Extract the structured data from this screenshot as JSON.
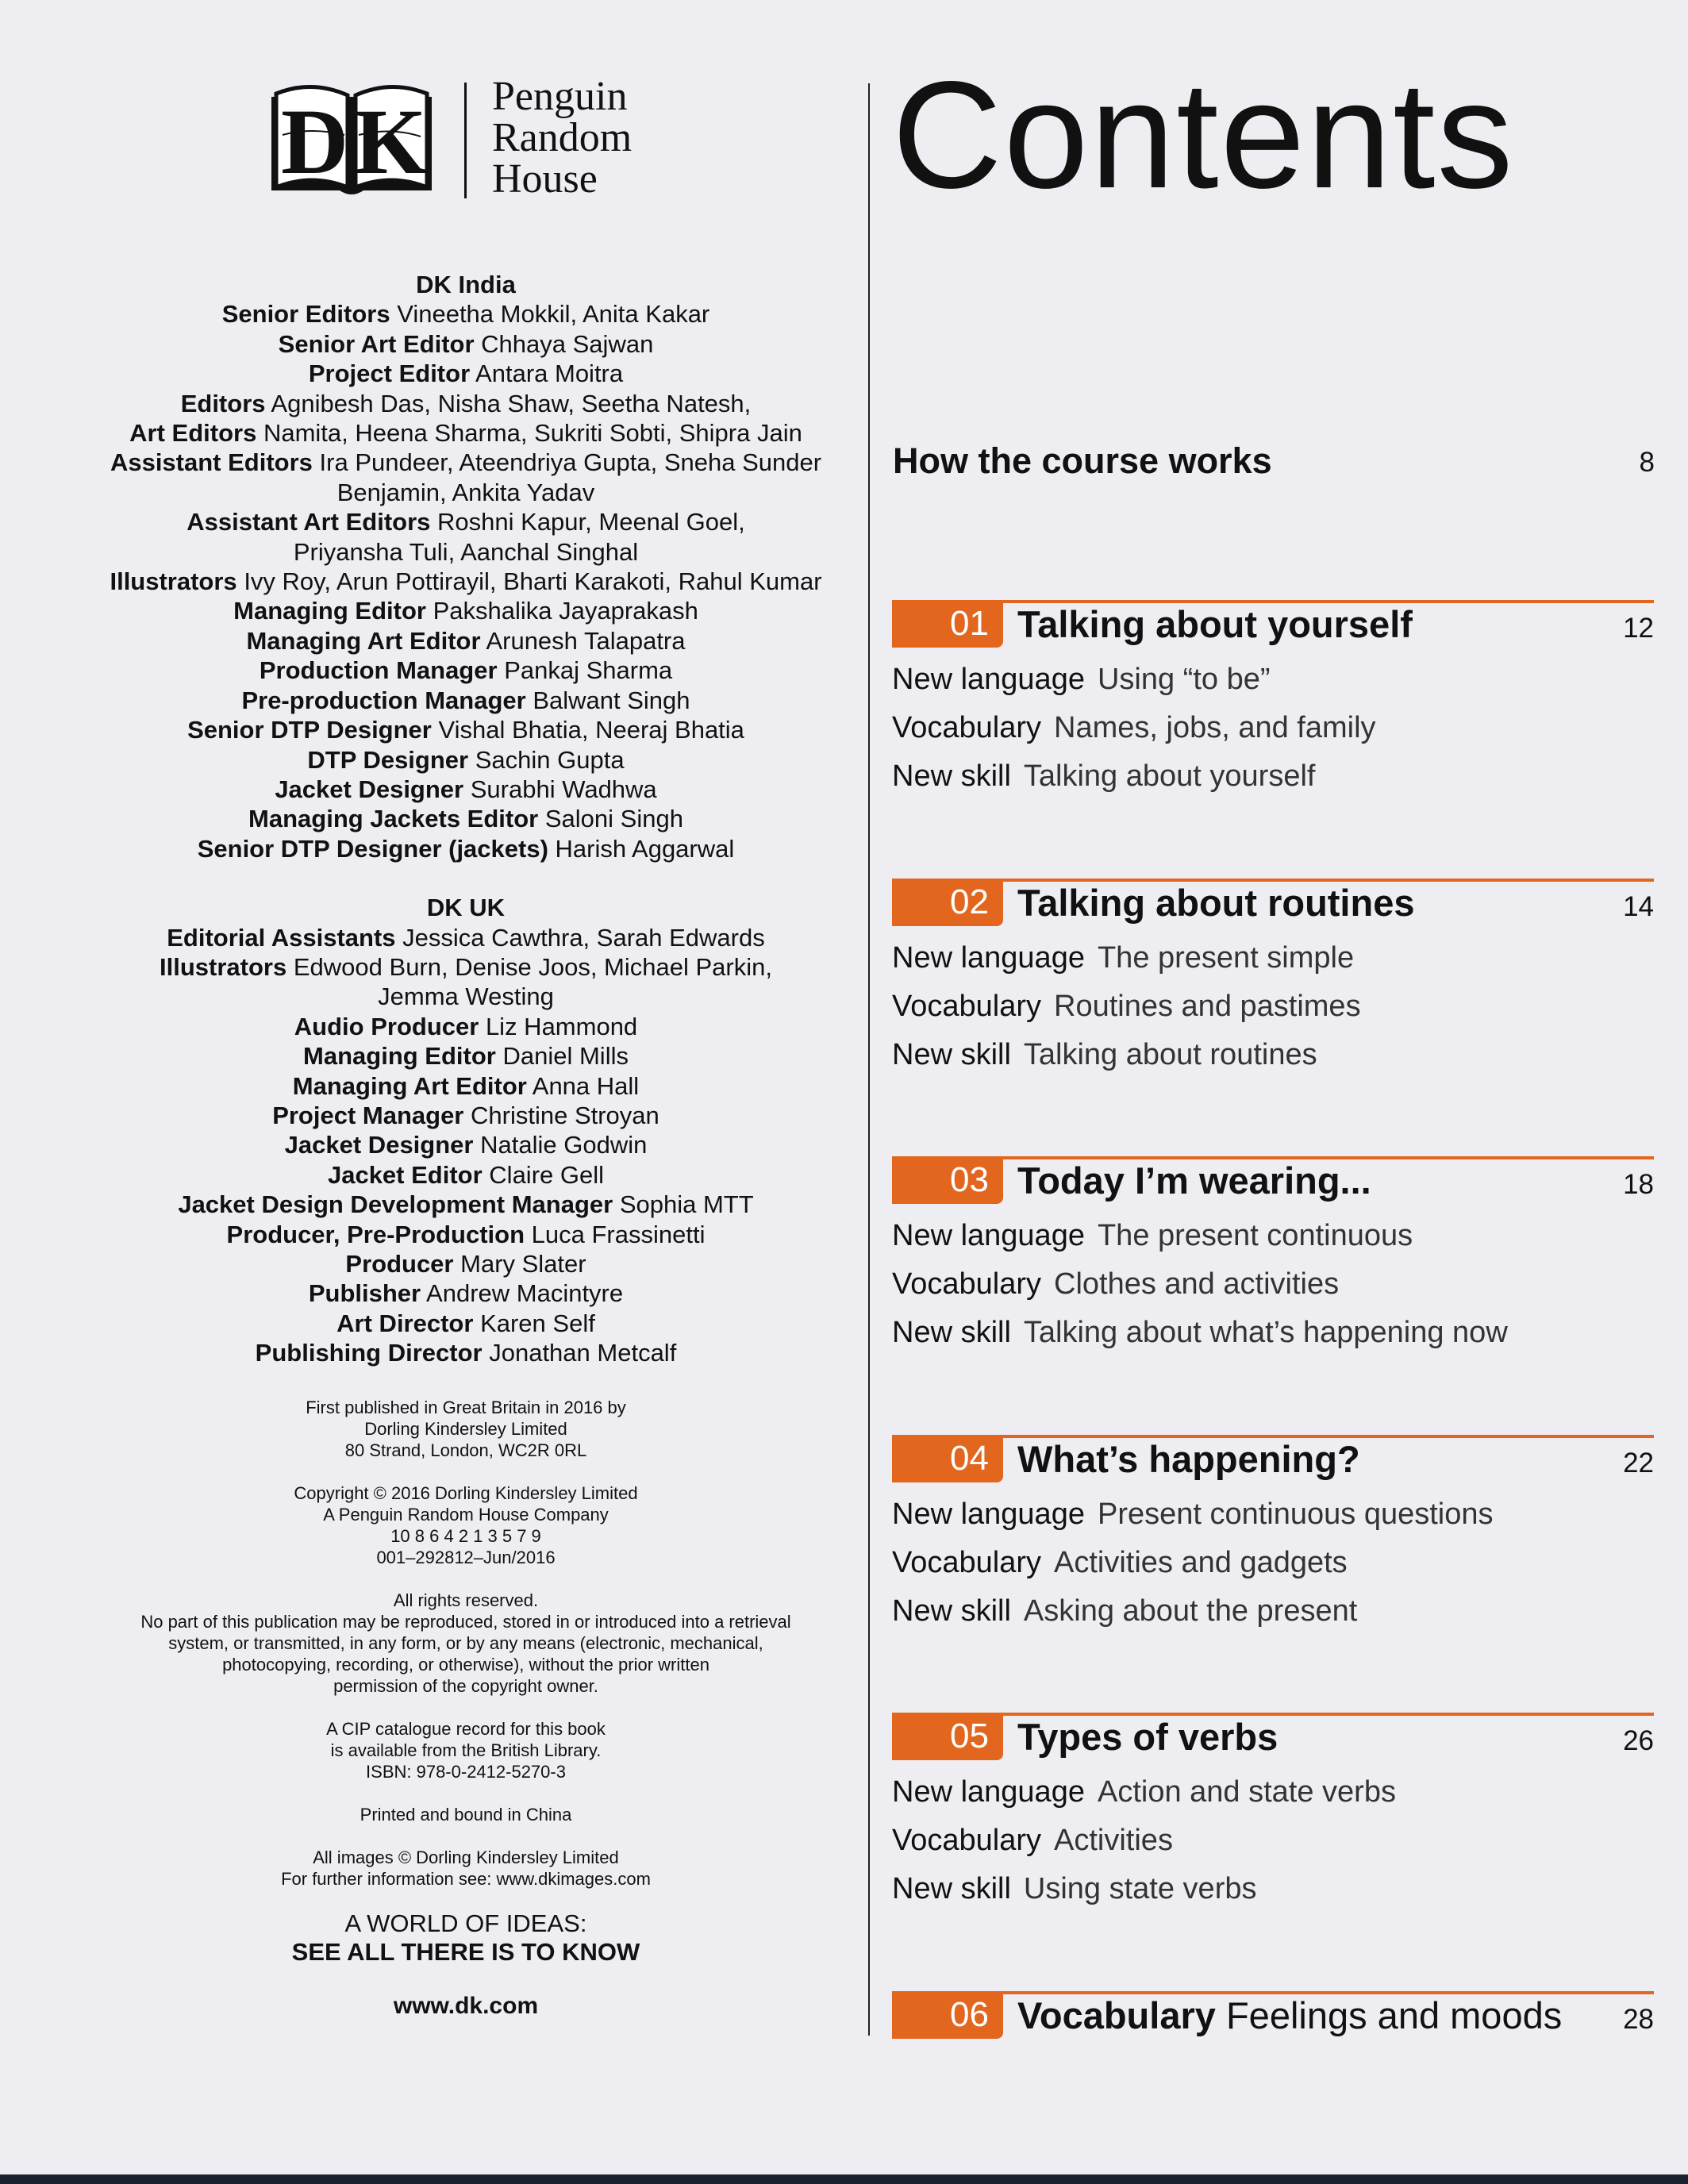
{
  "logo": {
    "letters": "DK",
    "publisher_lines": [
      "Penguin",
      "Random",
      "House"
    ]
  },
  "credits_india": {
    "heading": "DK India",
    "lines": [
      {
        "role": "Senior Editors",
        "name": "Vineetha Mokkil, Anita Kakar"
      },
      {
        "role": "Senior Art Editor",
        "name": "Chhaya Sajwan"
      },
      {
        "role": "Project Editor",
        "name": "Antara Moitra"
      },
      {
        "role": "Editors",
        "name": "Agnibesh Das, Nisha Shaw, Seetha Natesh,"
      },
      {
        "role": "Art Editors",
        "name": "Namita, Heena Sharma, Sukriti Sobti, Shipra Jain"
      },
      {
        "role": "Assistant Editors",
        "name": "Ira Pundeer, Ateendriya Gupta, Sneha Sunder"
      },
      {
        "role": "",
        "name": "Benjamin, Ankita Yadav"
      },
      {
        "role": "Assistant Art Editors",
        "name": "Roshni Kapur, Meenal Goel,"
      },
      {
        "role": "",
        "name": "Priyansha Tuli, Aanchal Singhal"
      },
      {
        "role": "Illustrators",
        "name": "Ivy Roy, Arun Pottirayil, Bharti Karakoti, Rahul Kumar"
      },
      {
        "role": "Managing Editor",
        "name": "Pakshalika Jayaprakash"
      },
      {
        "role": "Managing Art Editor",
        "name": "Arunesh Talapatra"
      },
      {
        "role": "Production Manager",
        "name": "Pankaj Sharma"
      },
      {
        "role": "Pre-production Manager",
        "name": "Balwant Singh"
      },
      {
        "role": "Senior DTP Designer",
        "name": "Vishal Bhatia, Neeraj Bhatia"
      },
      {
        "role": "DTP Designer",
        "name": "Sachin Gupta"
      },
      {
        "role": "Jacket Designer",
        "name": "Surabhi Wadhwa"
      },
      {
        "role": "Managing Jackets Editor",
        "name": "Saloni Singh"
      },
      {
        "role": "Senior DTP Designer (jackets)",
        "name": "Harish Aggarwal"
      }
    ]
  },
  "credits_uk": {
    "heading": "DK UK",
    "lines": [
      {
        "role": "Editorial Assistants",
        "name": "Jessica Cawthra, Sarah Edwards"
      },
      {
        "role": "Illustrators",
        "name": "Edwood Burn, Denise Joos, Michael Parkin,"
      },
      {
        "role": "",
        "name": "Jemma Westing"
      },
      {
        "role": "Audio Producer",
        "name": "Liz Hammond"
      },
      {
        "role": "Managing Editor",
        "name": "Daniel Mills"
      },
      {
        "role": "Managing Art Editor",
        "name": "Anna Hall"
      },
      {
        "role": "Project Manager",
        "name": "Christine Stroyan"
      },
      {
        "role": "Jacket Designer",
        "name": "Natalie Godwin"
      },
      {
        "role": "Jacket Editor",
        "name": "Claire Gell"
      },
      {
        "role": "Jacket Design Development Manager",
        "name": "Sophia MTT"
      },
      {
        "role": "Producer, Pre-Production",
        "name": "Luca Frassinetti"
      },
      {
        "role": "Producer",
        "name": "Mary Slater"
      },
      {
        "role": "Publisher",
        "name": "Andrew Macintyre"
      },
      {
        "role": "Art Director",
        "name": "Karen Self"
      },
      {
        "role": "Publishing Director",
        "name": "Jonathan Metcalf"
      }
    ]
  },
  "imprint": {
    "blocks": [
      [
        "First published in Great Britain in 2016 by",
        "Dorling Kindersley Limited",
        "80 Strand, London, WC2R 0RL"
      ],
      [
        "Copyright © 2016 Dorling Kindersley Limited",
        "A Penguin Random House Company",
        "10 8 6 4 2 1 3 5 7 9",
        "001–292812–Jun/2016"
      ],
      [
        "All rights reserved.",
        "No part of this publication may be reproduced, stored in or introduced into a retrieval",
        "system, or transmitted, in any form, or by any means (electronic, mechanical,",
        "photocopying, recording, or otherwise), without the prior written",
        "permission of the copyright owner."
      ],
      [
        "A CIP catalogue record for this book",
        "is available from the British Library.",
        "ISBN: 978-0-2412-5270-3"
      ],
      [
        "Printed and bound in China"
      ],
      [
        "All images © Dorling Kindersley Limited",
        "For further information see: www.dkimages.com"
      ]
    ],
    "tagline_1": "A WORLD OF IDEAS:",
    "tagline_2": "SEE ALL THERE IS TO KNOW",
    "website": "www.dk.com"
  },
  "contents": {
    "title": "Contents",
    "accent_color": "#e2661e",
    "intro": {
      "title": "How the course works",
      "page": "8"
    },
    "sections": [
      {
        "num": "01",
        "title": "Talking about yourself",
        "page": "12",
        "rows": [
          {
            "label": "New language",
            "value": "Using “to be”"
          },
          {
            "label": "Vocabulary",
            "value": "Names, jobs, and family"
          },
          {
            "label": "New skill",
            "value": "Talking about yourself"
          }
        ]
      },
      {
        "num": "02",
        "title": "Talking about routines",
        "page": "14",
        "rows": [
          {
            "label": "New language",
            "value": "The present simple"
          },
          {
            "label": "Vocabulary",
            "value": "Routines and pastimes"
          },
          {
            "label": "New skill",
            "value": "Talking about routines"
          }
        ]
      },
      {
        "num": "03",
        "title": "Today I’m wearing...",
        "page": "18",
        "rows": [
          {
            "label": "New language",
            "value": "The present continuous"
          },
          {
            "label": "Vocabulary",
            "value": "Clothes and activities"
          },
          {
            "label": "New skill",
            "value": "Talking about what’s happening now"
          }
        ]
      },
      {
        "num": "04",
        "title": "What’s happening?",
        "page": "22",
        "rows": [
          {
            "label": "New language",
            "value": "Present continuous questions"
          },
          {
            "label": "Vocabulary",
            "value": "Activities and gadgets"
          },
          {
            "label": "New skill",
            "value": "Asking about the present"
          }
        ]
      },
      {
        "num": "05",
        "title": "Types of verbs",
        "page": "26",
        "rows": [
          {
            "label": "New language",
            "value": "Action and state verbs"
          },
          {
            "label": "Vocabulary",
            "value": "Activities"
          },
          {
            "label": "New skill",
            "value": "Using state verbs"
          }
        ]
      },
      {
        "num": "06",
        "title": "Vocabulary",
        "title_light": "Feelings and moods",
        "page": "28",
        "rows": []
      }
    ]
  }
}
